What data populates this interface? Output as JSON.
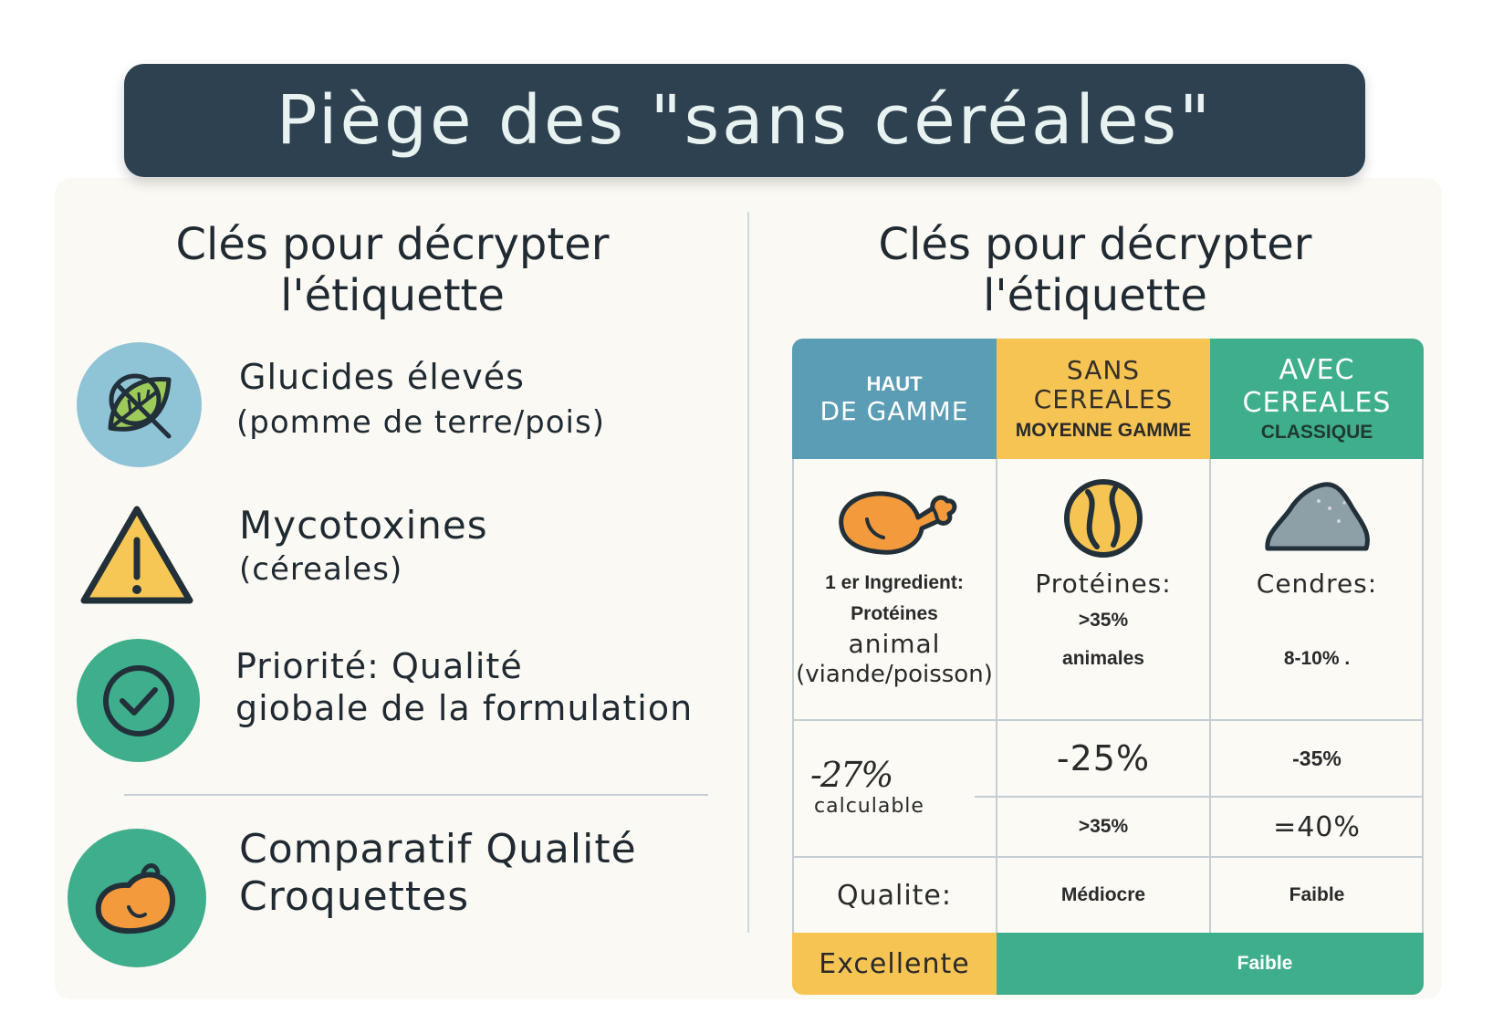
{
  "title": "Piège des \"sans céréales\"",
  "left": {
    "heading_line1": "Clés pour décrypter",
    "heading_line2": "l'étiquette",
    "keys": [
      {
        "icon": "leaf-crossed-icon",
        "main": "Glucides élevés",
        "sub": "(pomme de terre/pois)"
      },
      {
        "icon": "warning-triangle-icon",
        "main": "Mycotoxines",
        "sub": "(céreales)"
      },
      {
        "icon": "check-circle-icon",
        "main_line1": "Priorité: Qualité",
        "main_line2": "giobale de la formulation"
      }
    ],
    "comparatif_line1": "Comparatif Qualité",
    "comparatif_line2": "Croquettes",
    "comparatif_icon": "kibble-icon"
  },
  "right": {
    "heading_line1": "Clés pour décrypter",
    "heading_line2": "l'étiquette",
    "columns": [
      {
        "top": "HAUT",
        "main": "DE GAMME",
        "color": "#5b9db5"
      },
      {
        "main_line1": "SANS",
        "main_line2": "CEREALES",
        "sub": "MOYENNE GAMME",
        "color": "#f6c453"
      },
      {
        "main_line1": "AVEC",
        "main_line2": "CEREALES",
        "sub": "CLASSIQUE",
        "color": "#3fae8c"
      }
    ],
    "row1": {
      "col1_icon": "chicken-leg-icon",
      "col1_line1": "1 er Ingredient:",
      "col1_line2": "Protéines",
      "col1_line3": "animal",
      "col1_line4": "(viande/poisson)",
      "col2_icon": "ball-icon",
      "col2_line1": "Protéines:",
      "col2_line2": ">35%",
      "col2_line3": "animales",
      "col3_icon": "rock-icon",
      "col3_line1": "Cendres:",
      "col3_line2": "8-10% ."
    },
    "row2": {
      "col1_value": "-27%",
      "col1_sub": "calculable",
      "col2_top": "-25%",
      "col2_bottom": ">35%",
      "col3_top": "-35%",
      "col3_bottom": "=40%"
    },
    "row3": {
      "col1": "Qualite:",
      "col2": "Médiocre",
      "col3": "Faible"
    },
    "footer": {
      "col1": "Excellente",
      "col2": "Faible"
    }
  }
}
